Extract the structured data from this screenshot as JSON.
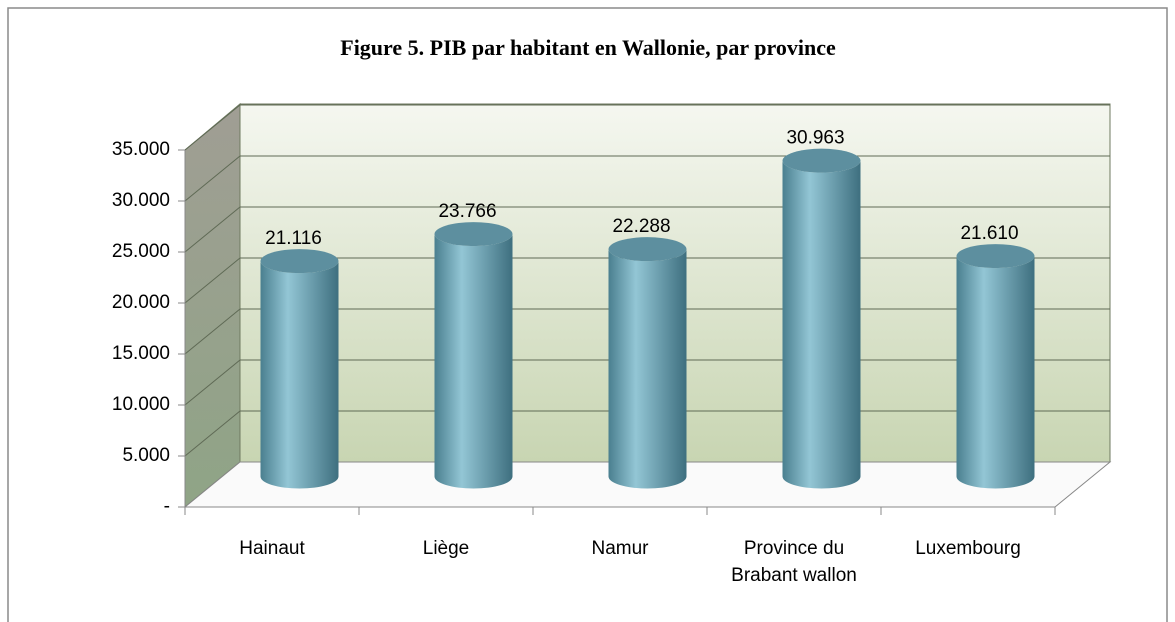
{
  "chart_data": {
    "type": "bar3d",
    "title": "Figure 5. PIB par habitant en Wallonie, par province",
    "categories": [
      "Hainaut",
      "Liège",
      "Namur",
      "Province du Brabant wallon",
      "Luxembourg"
    ],
    "values": [
      21116,
      23766,
      22288,
      30963,
      21610
    ],
    "value_labels": [
      "21.116",
      "23.766",
      "22.288",
      "30.963",
      "21.610"
    ],
    "color": "#6fa3b3",
    "ylim": [
      0,
      35000
    ],
    "yticks": [
      {
        "value": 0,
        "label": "-"
      },
      {
        "value": 5000,
        "label": "5.000"
      },
      {
        "value": 10000,
        "label": "10.000"
      },
      {
        "value": 15000,
        "label": "15.000"
      },
      {
        "value": 20000,
        "label": "20.000"
      },
      {
        "value": 25000,
        "label": "25.000"
      },
      {
        "value": 30000,
        "label": "30.000"
      },
      {
        "value": 35000,
        "label": "35.000"
      }
    ],
    "grid": true
  }
}
